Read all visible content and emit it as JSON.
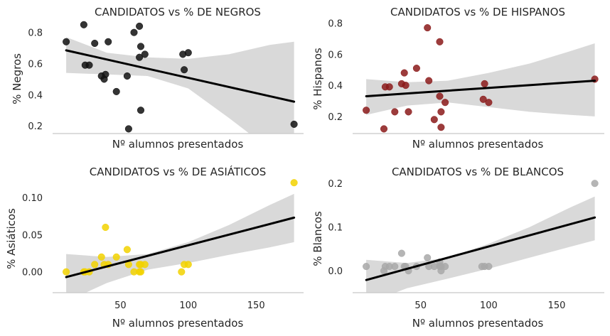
{
  "chart_data": [
    {
      "type": "scatter",
      "title": "CANDIDATOS vs % DE NEGROS",
      "xlabel": "Nº alumnos presentados",
      "ylabel": "% Negros",
      "xlim": [
        0,
        185
      ],
      "ylim": [
        0.15,
        0.89
      ],
      "x_ticks_shown": false,
      "yticks": [
        0.2,
        0.4,
        0.6,
        0.8
      ],
      "ytick_labels": [
        "0.2",
        "0.4",
        "0.6",
        "0.8"
      ],
      "point_color": "#111111",
      "points": [
        [
          10,
          0.74
        ],
        [
          23,
          0.85
        ],
        [
          24,
          0.59
        ],
        [
          27,
          0.59
        ],
        [
          31,
          0.73
        ],
        [
          36,
          0.52
        ],
        [
          38,
          0.5
        ],
        [
          39,
          0.53
        ],
        [
          41,
          0.74
        ],
        [
          47,
          0.42
        ],
        [
          55,
          0.52
        ],
        [
          56,
          0.18
        ],
        [
          60,
          0.8
        ],
        [
          64,
          0.84
        ],
        [
          64,
          0.64
        ],
        [
          65,
          0.71
        ],
        [
          65,
          0.3
        ],
        [
          68,
          0.66
        ],
        [
          96,
          0.66
        ],
        [
          97,
          0.56
        ],
        [
          100,
          0.67
        ],
        [
          178,
          0.21
        ]
      ],
      "fit": {
        "x": [
          10,
          178
        ],
        "y": [
          0.685,
          0.355
        ]
      },
      "ci": {
        "x": [
          10,
          40,
          70,
          100,
          130,
          160,
          178
        ],
        "upper": [
          0.77,
          0.67,
          0.64,
          0.63,
          0.66,
          0.72,
          0.74
        ],
        "lower": [
          0.54,
          0.53,
          0.52,
          0.44,
          0.25,
          0.05,
          -0.05
        ]
      },
      "grid": false
    },
    {
      "type": "scatter",
      "title": "CANDIDATOS vs % DE HISPANOS",
      "xlabel": "Nº alumnos presentados",
      "ylabel": "% Hispanos",
      "xlim": [
        0,
        185
      ],
      "ylim": [
        0.09,
        0.83
      ],
      "x_ticks_shown": false,
      "yticks": [
        0.2,
        0.4,
        0.6,
        0.8
      ],
      "ytick_labels": [
        "0.2",
        "0.4",
        "0.6",
        "0.8"
      ],
      "point_color": "#8b1a1a",
      "points": [
        [
          10,
          0.24
        ],
        [
          23,
          0.12
        ],
        [
          24,
          0.39
        ],
        [
          27,
          0.39
        ],
        [
          31,
          0.23
        ],
        [
          36,
          0.41
        ],
        [
          38,
          0.48
        ],
        [
          39,
          0.4
        ],
        [
          41,
          0.23
        ],
        [
          47,
          0.51
        ],
        [
          55,
          0.77
        ],
        [
          56,
          0.43
        ],
        [
          60,
          0.18
        ],
        [
          64,
          0.33
        ],
        [
          64,
          0.68
        ],
        [
          65,
          0.13
        ],
        [
          65,
          0.23
        ],
        [
          68,
          0.29
        ],
        [
          96,
          0.31
        ],
        [
          97,
          0.41
        ],
        [
          100,
          0.29
        ],
        [
          178,
          0.44
        ]
      ],
      "fit": {
        "x": [
          10,
          178
        ],
        "y": [
          0.33,
          0.43
        ]
      },
      "ci": {
        "x": [
          10,
          40,
          70,
          100,
          130,
          160,
          178
        ],
        "upper": [
          0.44,
          0.42,
          0.43,
          0.48,
          0.54,
          0.62,
          0.67
        ],
        "lower": [
          0.21,
          0.27,
          0.29,
          0.26,
          0.23,
          0.21,
          0.2
        ]
      },
      "grid": false
    },
    {
      "type": "scatter",
      "title": "CANDIDATOS vs % DE ASIÁTICOS",
      "xlabel": "Nº alumnos presentados",
      "ylabel": "% Asiáticos",
      "xlim": [
        0,
        185
      ],
      "ylim": [
        -0.028,
        0.125
      ],
      "xticks": [
        50,
        100,
        150
      ],
      "xtick_labels": [
        "50",
        "100",
        "150"
      ],
      "yticks": [
        0.0,
        0.05,
        0.1
      ],
      "ytick_labels": [
        "0.00",
        "0.05",
        "0.10"
      ],
      "point_color": "#f2d200",
      "points": [
        [
          10,
          0.0
        ],
        [
          23,
          0.0
        ],
        [
          24,
          0.0
        ],
        [
          27,
          0.0
        ],
        [
          31,
          0.01
        ],
        [
          36,
          0.02
        ],
        [
          38,
          0.01
        ],
        [
          39,
          0.06
        ],
        [
          41,
          0.01
        ],
        [
          47,
          0.02
        ],
        [
          55,
          0.03
        ],
        [
          56,
          0.01
        ],
        [
          60,
          0.0
        ],
        [
          64,
          0.01
        ],
        [
          64,
          0.0
        ],
        [
          65,
          0.0
        ],
        [
          65,
          0.01
        ],
        [
          68,
          0.01
        ],
        [
          95,
          0.0
        ],
        [
          97,
          0.01
        ],
        [
          100,
          0.01
        ],
        [
          178,
          0.12
        ]
      ],
      "fit": {
        "x": [
          10,
          178
        ],
        "y": [
          -0.007,
          0.073
        ]
      },
      "ci": {
        "x": [
          10,
          40,
          70,
          100,
          130,
          160,
          178
        ],
        "upper": [
          0.024,
          0.02,
          0.024,
          0.04,
          0.063,
          0.09,
          0.105
        ],
        "lower": [
          -0.04,
          -0.015,
          0.003,
          0.012,
          0.023,
          0.033,
          0.04
        ]
      },
      "grid": false
    },
    {
      "type": "scatter",
      "title": "CANDIDATOS vs % DE BLANCOS",
      "xlabel": "Nº alumnos presentados",
      "ylabel": "% Blancos",
      "xlim": [
        0,
        185
      ],
      "ylim": [
        -0.05,
        0.21
      ],
      "xticks": [
        50,
        100,
        150
      ],
      "xtick_labels": [
        "50",
        "100",
        "150"
      ],
      "yticks": [
        0.0,
        0.1,
        0.2
      ],
      "ytick_labels": [
        "0.0",
        "0.1",
        "0.2"
      ],
      "point_color": "#a8a8a8",
      "points": [
        [
          10,
          0.01
        ],
        [
          23,
          0.0
        ],
        [
          24,
          0.01
        ],
        [
          27,
          0.01
        ],
        [
          31,
          0.01
        ],
        [
          36,
          0.04
        ],
        [
          38,
          0.01
        ],
        [
          39,
          0.01
        ],
        [
          41,
          0.0
        ],
        [
          47,
          0.01
        ],
        [
          55,
          0.03
        ],
        [
          56,
          0.01
        ],
        [
          60,
          0.01
        ],
        [
          64,
          0.01
        ],
        [
          64,
          0.02
        ],
        [
          65,
          0.0
        ],
        [
          65,
          0.01
        ],
        [
          68,
          0.01
        ],
        [
          95,
          0.01
        ],
        [
          97,
          0.01
        ],
        [
          100,
          0.01
        ],
        [
          178,
          0.2
        ]
      ],
      "fit": {
        "x": [
          10,
          178
        ],
        "y": [
          -0.021,
          0.122
        ]
      },
      "ci": {
        "x": [
          10,
          40,
          70,
          100,
          130,
          160,
          178
        ],
        "upper": [
          0.025,
          0.018,
          0.03,
          0.062,
          0.1,
          0.145,
          0.17
        ],
        "lower": [
          -0.075,
          -0.04,
          -0.018,
          0.005,
          0.03,
          0.055,
          0.07
        ]
      },
      "grid": false
    }
  ],
  "colors": {
    "background": "#ffffff",
    "ci_band": "#d9d9d9",
    "fit_line": "#000000",
    "axis_line": "#c8c8c8",
    "text": "#262626"
  }
}
